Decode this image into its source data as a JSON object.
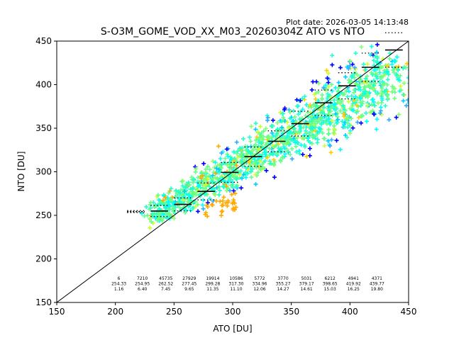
{
  "chart_data": {
    "type": "scatter",
    "title": "S-O3M_GOME_VOD_XX_M03_20260304Z ATO vs NTO",
    "plot_date": "Plot date: 2026-03-05 14:13:48",
    "xlabel": "ATO [DU]",
    "ylabel": "NTO [DU]",
    "xlim": [
      150,
      450
    ],
    "ylim": [
      150,
      450
    ],
    "xticks": [
      150,
      200,
      250,
      300,
      350,
      400,
      450
    ],
    "yticks": [
      150,
      200,
      250,
      300,
      350,
      400,
      450
    ],
    "grid": false,
    "one_to_one_line": true,
    "cloud": {
      "center_start": [
        232,
        250
      ],
      "center_end": [
        447,
        420
      ],
      "colors": [
        "#00ffff",
        "#22ffcc",
        "#66ff88",
        "#88ff66",
        "#ccff33",
        "#ffcc00",
        "#ffaa00",
        "#33aaff",
        "#0000ff",
        "#00ccff"
      ]
    },
    "bins": [
      {
        "x_center": 217.5,
        "x_from": 210,
        "x_to": 225,
        "count": "6",
        "mean": "254.33",
        "std": "1.16"
      },
      {
        "x_center": 237.5,
        "x_from": 230,
        "x_to": 245,
        "count": "7210",
        "mean": "254.95",
        "std": "6.40"
      },
      {
        "x_center": 257.5,
        "x_from": 250,
        "x_to": 265,
        "count": "45735",
        "mean": "262.52",
        "std": "7.45"
      },
      {
        "x_center": 277.5,
        "x_from": 270,
        "x_to": 285,
        "count": "27929",
        "mean": "277.45",
        "std": "9.65"
      },
      {
        "x_center": 297.5,
        "x_from": 290,
        "x_to": 305,
        "count": "19914",
        "mean": "299.28",
        "std": "11.35"
      },
      {
        "x_center": 317.5,
        "x_from": 310,
        "x_to": 325,
        "count": "10586",
        "mean": "317.30",
        "std": "11.10"
      },
      {
        "x_center": 337.5,
        "x_from": 330,
        "x_to": 345,
        "count": "5772",
        "mean": "334.96",
        "std": "12.06"
      },
      {
        "x_center": 357.5,
        "x_from": 350,
        "x_to": 365,
        "count": "3770",
        "mean": "355.27",
        "std": "14.27"
      },
      {
        "x_center": 377.5,
        "x_from": 370,
        "x_to": 385,
        "count": "5031",
        "mean": "379.17",
        "std": "14.61"
      },
      {
        "x_center": 397.5,
        "x_from": 390,
        "x_to": 405,
        "count": "6212",
        "mean": "398.65",
        "std": "15.03"
      },
      {
        "x_center": 417.5,
        "x_from": 410,
        "x_to": 425,
        "count": "4941",
        "mean": "419.92",
        "std": "16.25"
      },
      {
        "x_center": 437.5,
        "x_from": 430,
        "x_to": 445,
        "count": "4371",
        "mean": "439.77",
        "std": "19.80"
      }
    ]
  }
}
